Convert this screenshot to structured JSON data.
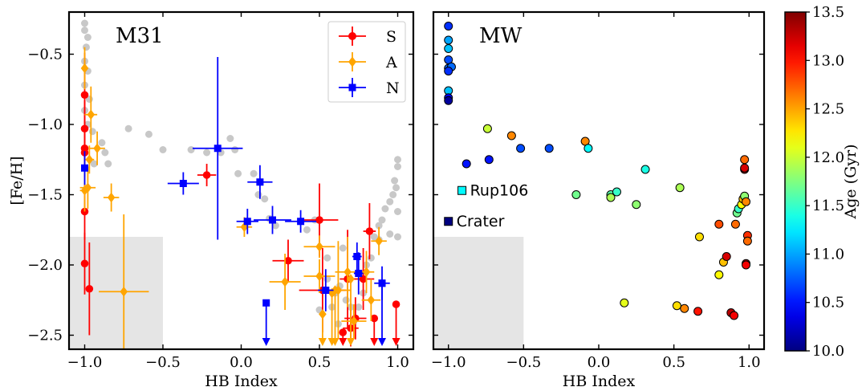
{
  "chart_data": [
    {
      "type": "scatter",
      "panel": "M31",
      "title": "M31",
      "xlabel": "HB Index",
      "ylabel": "[Fe/H]",
      "xlim": [
        -1.1,
        1.1
      ],
      "ylim": [
        -2.6,
        -0.2
      ],
      "xticks": [
        -1.0,
        -0.5,
        0.0,
        0.5,
        1.0
      ],
      "xtick_labels": [
        "−1.0",
        "−0.5",
        "0.0",
        "0.5",
        "1.0"
      ],
      "yticks": [
        -2.5,
        -2.0,
        -1.5,
        -1.0,
        -0.5
      ],
      "ytick_labels": [
        "−2.5",
        "−2.0",
        "−1.5",
        "−1.0",
        "−0.5"
      ],
      "legend_position": "top-right",
      "shaded_region": {
        "x": [
          -1.1,
          -0.5
        ],
        "y": [
          -2.6,
          -1.8
        ]
      },
      "background_points": {
        "color": "#c8c8c8",
        "points": [
          [
            -1.0,
            -0.28
          ],
          [
            -1.0,
            -0.33
          ],
          [
            -0.98,
            -0.38
          ],
          [
            -0.99,
            -0.45
          ],
          [
            -1.0,
            -0.55
          ],
          [
            -0.98,
            -0.62
          ],
          [
            -1.0,
            -0.72
          ],
          [
            -0.97,
            -0.82
          ],
          [
            -1.0,
            -0.9
          ],
          [
            -0.98,
            -1.0
          ],
          [
            -0.95,
            -1.05
          ],
          [
            -0.89,
            -1.13
          ],
          [
            -0.87,
            -1.2
          ],
          [
            -0.94,
            -1.28
          ],
          [
            -0.85,
            -1.28
          ],
          [
            -0.72,
            -1.03
          ],
          [
            -0.59,
            -1.07
          ],
          [
            -0.5,
            -1.18
          ],
          [
            -0.32,
            -1.18
          ],
          [
            -0.22,
            -1.2
          ],
          [
            -0.13,
            -1.2
          ],
          [
            -0.07,
            -1.1
          ],
          [
            -0.04,
            -1.18
          ],
          [
            -0.02,
            -1.35
          ],
          [
            0.08,
            -1.35
          ],
          [
            0.11,
            -1.5
          ],
          [
            0.15,
            -1.53
          ],
          [
            0.18,
            -1.67
          ],
          [
            0.22,
            -1.72
          ],
          [
            0.47,
            -1.68
          ],
          [
            0.55,
            -1.95
          ],
          [
            0.55,
            -2.1
          ],
          [
            0.58,
            -2.3
          ],
          [
            0.6,
            -2.2
          ],
          [
            0.63,
            -2.15
          ],
          [
            0.67,
            -2.25
          ],
          [
            0.7,
            -2.3
          ],
          [
            0.72,
            -2.4
          ],
          [
            0.75,
            -2.3
          ],
          [
            0.78,
            -2.2
          ],
          [
            0.8,
            -2.0
          ],
          [
            0.83,
            -1.95
          ],
          [
            0.85,
            -1.8
          ],
          [
            0.88,
            -1.72
          ],
          [
            0.9,
            -1.68
          ],
          [
            0.92,
            -1.6
          ],
          [
            0.95,
            -1.55
          ],
          [
            0.97,
            -1.5
          ],
          [
            0.98,
            -1.4
          ],
          [
            1.0,
            -1.3
          ],
          [
            1.0,
            -1.25
          ],
          [
            0.99,
            -1.45
          ],
          [
            1.0,
            -1.62
          ],
          [
            1.0,
            -1.8
          ],
          [
            0.88,
            -1.82
          ],
          [
            0.65,
            -1.88
          ],
          [
            0.5,
            -2.32
          ],
          [
            0.62,
            -2.42
          ],
          [
            0.42,
            -1.75
          ],
          [
            0.95,
            -1.78
          ]
        ]
      },
      "series": [
        {
          "name": "S",
          "color": "#ff0000",
          "marker": "circle",
          "points": [
            {
              "x": -1.0,
              "y": -0.79,
              "xerr": 0.01,
              "yerr": 0.3
            },
            {
              "x": -1.0,
              "y": -1.03,
              "xerr": 0.01,
              "yerr": 0.2
            },
            {
              "x": -1.0,
              "y": -1.17,
              "xerr": 0.01,
              "yerr": 0.2
            },
            {
              "x": -1.0,
              "y": -1.2,
              "xerr": 0.01,
              "yerr": 0.15
            },
            {
              "x": -1.0,
              "y": -1.62,
              "xerr": 0.01,
              "yerr": 0.2
            },
            {
              "x": -1.0,
              "y": -1.99,
              "xerr": 0.01,
              "yerr": 0.22
            },
            {
              "x": -0.97,
              "y": -2.17,
              "xerr": 0.02,
              "yerr": 0.33
            },
            {
              "x": -0.22,
              "y": -1.36,
              "xerr": 0.06,
              "yerr": 0.08
            },
            {
              "x": 0.3,
              "y": -1.97,
              "xerr": 0.1,
              "yerr": 0.15
            },
            {
              "x": 0.5,
              "y": -1.68,
              "xerr": 0.12,
              "yerr": 0.26
            },
            {
              "x": 0.52,
              "y": -2.18,
              "xerr": 0.15,
              "yerr": 0.3
            },
            {
              "x": 0.68,
              "y": -2.1,
              "xerr": 0.05,
              "yerr": 0.35
            },
            {
              "x": 0.7,
              "y": -2.45,
              "xerr": 0.05,
              "yerr": 0.13
            },
            {
              "x": 0.73,
              "y": -2.38,
              "xerr": 0.07,
              "yerr": 0.15
            },
            {
              "x": 0.82,
              "y": -1.76,
              "xerr": 0.04,
              "yerr": 0.2
            },
            {
              "x": 0.78,
              "y": -2.1,
              "xerr": 0.07,
              "yerr": 0.22
            }
          ],
          "upper_limits": [
            {
              "x": 0.65,
              "y": -2.48
            },
            {
              "x": 0.85,
              "y": -2.38
            },
            {
              "x": 0.99,
              "y": -2.28
            }
          ]
        },
        {
          "name": "A",
          "color": "#ffa500",
          "marker": "diamond",
          "points": [
            {
              "x": -1.0,
              "y": -0.6,
              "xerr": 0.02,
              "yerr": 0.15
            },
            {
              "x": -0.96,
              "y": -0.93,
              "xerr": 0.04,
              "yerr": 0.2
            },
            {
              "x": -0.92,
              "y": -1.17,
              "xerr": 0.05,
              "yerr": 0.12
            },
            {
              "x": -0.97,
              "y": -1.25,
              "xerr": 0.03,
              "yerr": 0.1
            },
            {
              "x": -1.0,
              "y": -1.47,
              "xerr": 0.03,
              "yerr": 0.15
            },
            {
              "x": -0.98,
              "y": -1.45,
              "xerr": 0.05,
              "yerr": 0.15
            },
            {
              "x": -0.83,
              "y": -1.52,
              "xerr": 0.05,
              "yerr": 0.1
            },
            {
              "x": -0.75,
              "y": -2.19,
              "xerr": 0.16,
              "yerr": 0.55
            },
            {
              "x": 0.02,
              "y": -1.73,
              "xerr": 0.05,
              "yerr": 0.07
            },
            {
              "x": 0.28,
              "y": -2.12,
              "xerr": 0.1,
              "yerr": 0.2
            },
            {
              "x": 0.5,
              "y": -1.87,
              "xerr": 0.1,
              "yerr": 0.08
            },
            {
              "x": 0.5,
              "y": -2.08,
              "xerr": 0.1,
              "yerr": 0.12
            },
            {
              "x": 0.62,
              "y": -2.18,
              "xerr": 0.08,
              "yerr": 0.35
            },
            {
              "x": 0.68,
              "y": -2.05,
              "xerr": 0.08,
              "yerr": 0.25
            },
            {
              "x": 0.72,
              "y": -2.4,
              "xerr": 0.08,
              "yerr": 0.12
            },
            {
              "x": 0.8,
              "y": -2.05,
              "xerr": 0.05,
              "yerr": 0.15
            },
            {
              "x": 0.83,
              "y": -2.25,
              "xerr": 0.06,
              "yerr": 0.15
            },
            {
              "x": 0.88,
              "y": -1.83,
              "xerr": 0.05,
              "yerr": 0.1
            }
          ],
          "upper_limits": [
            {
              "x": 0.52,
              "y": -2.35
            },
            {
              "x": 0.58,
              "y": -2.2
            },
            {
              "x": 0.6,
              "y": -2.18
            },
            {
              "x": 0.7,
              "y": -2.1
            }
          ]
        },
        {
          "name": "N",
          "color": "#0000ff",
          "marker": "square",
          "points": [
            {
              "x": -1.0,
              "y": -1.31,
              "xerr": 0.01,
              "yerr": 0.12
            },
            {
              "x": -0.37,
              "y": -1.42,
              "xerr": 0.1,
              "yerr": 0.08
            },
            {
              "x": -0.15,
              "y": -1.17,
              "xerr": 0.16,
              "yerr": 0.65
            },
            {
              "x": 0.04,
              "y": -1.69,
              "xerr": 0.07,
              "yerr": 0.09
            },
            {
              "x": 0.12,
              "y": -1.41,
              "xerr": 0.08,
              "yerr": 0.12
            },
            {
              "x": 0.2,
              "y": -1.68,
              "xerr": 0.12,
              "yerr": 0.1
            },
            {
              "x": 0.38,
              "y": -1.69,
              "xerr": 0.1,
              "yerr": 0.08
            },
            {
              "x": 0.54,
              "y": -2.18,
              "xerr": 0.05,
              "yerr": 0.15
            },
            {
              "x": 0.74,
              "y": -1.94,
              "xerr": 0.03,
              "yerr": 0.1
            },
            {
              "x": 0.75,
              "y": -2.06,
              "xerr": 0.03,
              "yerr": 0.15
            },
            {
              "x": 0.9,
              "y": -2.13,
              "xerr": 0.05,
              "yerr": 0.12
            }
          ],
          "upper_limits": [
            {
              "x": 0.16,
              "y": -2.27
            },
            {
              "x": 0.9,
              "y": -2.13
            }
          ]
        }
      ]
    },
    {
      "type": "scatter",
      "panel": "MW",
      "title": "MW",
      "xlabel": "HB Index",
      "ylabel": "",
      "xlim": [
        -1.1,
        1.1
      ],
      "ylim": [
        -2.6,
        -0.2
      ],
      "xticks": [
        -1.0,
        -0.5,
        0.0,
        0.5,
        1.0
      ],
      "xtick_labels": [
        "−1.0",
        "−0.5",
        "0.0",
        "0.5",
        "1.0"
      ],
      "shaded_region": {
        "x": [
          -1.1,
          -0.5
        ],
        "y": [
          -2.6,
          -1.8
        ]
      },
      "colorbar": {
        "label": "Age (Gyr)",
        "range": [
          10.0,
          13.5
        ],
        "ticks": [
          10.0,
          10.5,
          11.0,
          11.5,
          12.0,
          12.5,
          13.0,
          13.5
        ],
        "tick_labels": [
          "10.0",
          "10.5",
          "11.0",
          "11.5",
          "12.0",
          "12.5",
          "13.0",
          "13.5"
        ],
        "colormap": "jet"
      },
      "points": [
        {
          "x": -1.0,
          "y": -0.3,
          "age": 10.6
        },
        {
          "x": -1.0,
          "y": -0.4,
          "age": 11.0
        },
        {
          "x": -1.0,
          "y": -0.46,
          "age": 11.1
        },
        {
          "x": -1.0,
          "y": -0.54,
          "age": 10.7
        },
        {
          "x": -1.0,
          "y": -0.6,
          "age": 10.8
        },
        {
          "x": -0.98,
          "y": -0.59,
          "age": 10.8
        },
        {
          "x": -1.0,
          "y": -0.62,
          "age": 10.6
        },
        {
          "x": -1.0,
          "y": -0.76,
          "age": 11.1
        },
        {
          "x": -1.0,
          "y": -0.81,
          "age": 10.4
        },
        {
          "x": -1.0,
          "y": -0.83,
          "age": 10.1
        },
        {
          "x": -0.88,
          "y": -1.28,
          "age": 10.5
        },
        {
          "x": -0.74,
          "y": -1.03,
          "age": 12.0
        },
        {
          "x": -0.73,
          "y": -1.25,
          "age": 10.5
        },
        {
          "x": -0.58,
          "y": -1.08,
          "age": 12.6
        },
        {
          "x": -0.52,
          "y": -1.17,
          "age": 10.7
        },
        {
          "x": -0.33,
          "y": -1.17,
          "age": 10.7
        },
        {
          "x": -0.15,
          "y": -1.5,
          "age": 11.7
        },
        {
          "x": -0.09,
          "y": -1.12,
          "age": 12.6
        },
        {
          "x": -0.07,
          "y": -1.17,
          "age": 11.3
        },
        {
          "x": 0.08,
          "y": -1.5,
          "age": 11.6
        },
        {
          "x": 0.08,
          "y": -1.52,
          "age": 11.9
        },
        {
          "x": 0.12,
          "y": -1.48,
          "age": 11.5
        },
        {
          "x": 0.17,
          "y": -2.27,
          "age": 12.1
        },
        {
          "x": 0.25,
          "y": -1.57,
          "age": 11.8
        },
        {
          "x": 0.31,
          "y": -1.32,
          "age": 11.4
        },
        {
          "x": 0.52,
          "y": -2.29,
          "age": 12.3
        },
        {
          "x": 0.54,
          "y": -1.45,
          "age": 11.9
        },
        {
          "x": 0.57,
          "y": -2.31,
          "age": 12.6
        },
        {
          "x": 0.66,
          "y": -2.33,
          "age": 13.0
        },
        {
          "x": 0.67,
          "y": -1.8,
          "age": 12.3
        },
        {
          "x": 0.8,
          "y": -1.71,
          "age": 12.8
        },
        {
          "x": 0.8,
          "y": -2.07,
          "age": 12.2
        },
        {
          "x": 0.83,
          "y": -1.98,
          "age": 12.4
        },
        {
          "x": 0.85,
          "y": -1.94,
          "age": 13.2
        },
        {
          "x": 0.88,
          "y": -2.34,
          "age": 13.3
        },
        {
          "x": 0.9,
          "y": -2.36,
          "age": 13.1
        },
        {
          "x": 0.91,
          "y": -1.71,
          "age": 12.7
        },
        {
          "x": 0.92,
          "y": -1.63,
          "age": 11.7
        },
        {
          "x": 0.93,
          "y": -1.6,
          "age": 11.5
        },
        {
          "x": 0.95,
          "y": -1.57,
          "age": 12.2
        },
        {
          "x": 0.96,
          "y": -1.53,
          "age": 12.4
        },
        {
          "x": 0.97,
          "y": -1.51,
          "age": 11.8
        },
        {
          "x": 0.97,
          "y": -1.25,
          "age": 12.7
        },
        {
          "x": 0.97,
          "y": -1.32,
          "age": 13.4
        },
        {
          "x": 0.97,
          "y": -1.31,
          "age": 13.2
        },
        {
          "x": 0.98,
          "y": -1.55,
          "age": 12.6
        },
        {
          "x": 0.98,
          "y": -1.99,
          "age": 13.3
        },
        {
          "x": 0.98,
          "y": -2.0,
          "age": 13.1
        },
        {
          "x": 0.99,
          "y": -1.79,
          "age": 12.9
        },
        {
          "x": 0.99,
          "y": -1.83,
          "age": 12.7
        }
      ],
      "annotations": [
        {
          "label": "Rup106",
          "x": -0.91,
          "y": -1.47,
          "age": 11.3,
          "marker": "square"
        },
        {
          "label": "Crater",
          "x": -1.0,
          "y": -1.69,
          "age": 10.0,
          "marker": "square"
        }
      ]
    }
  ]
}
